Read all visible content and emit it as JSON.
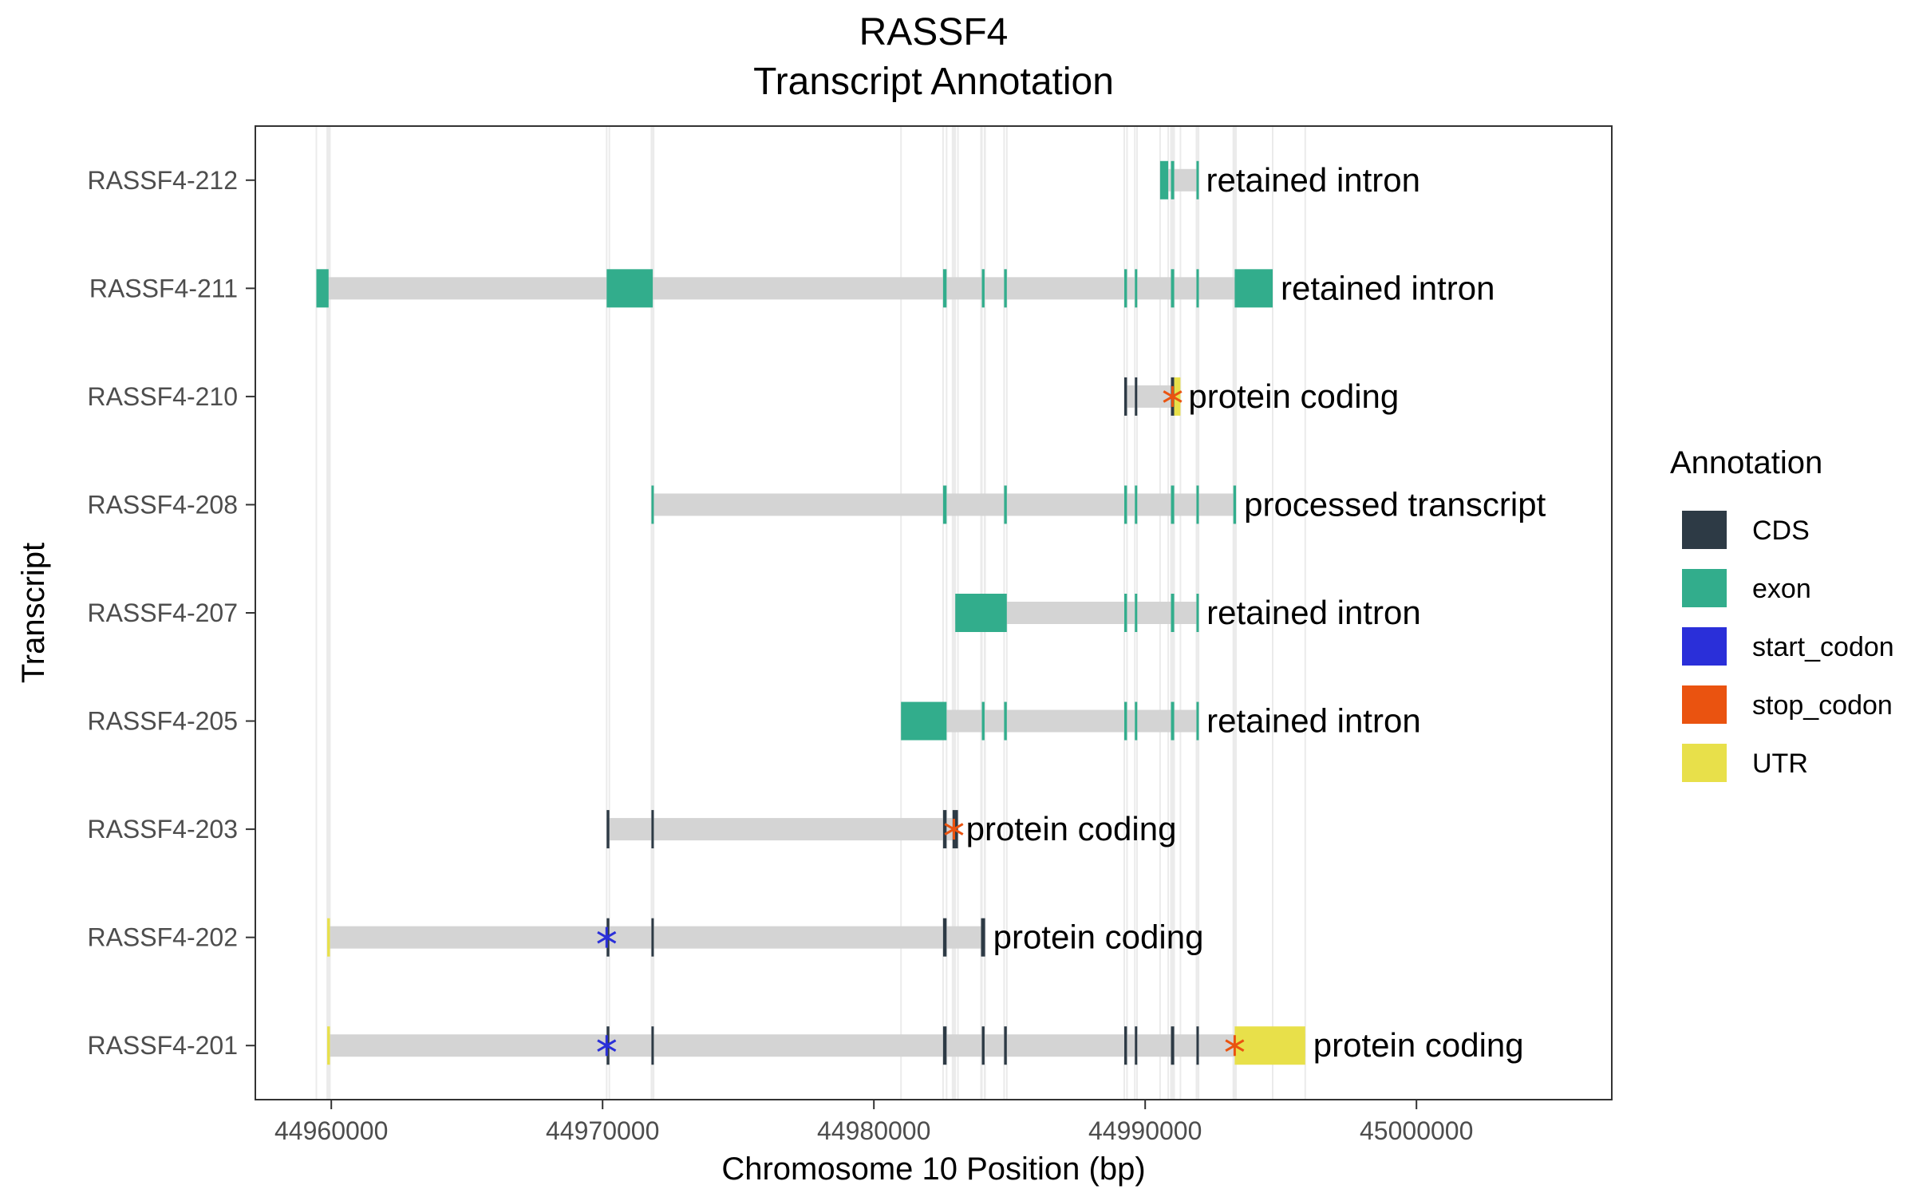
{
  "chart_data": {
    "type": "gene-track",
    "title": "RASSF4",
    "subtitle": "Transcript Annotation",
    "xlabel": "Chromosome 10 Position (bp)",
    "ylabel": "Transcript",
    "xlim": [
      44957200,
      45007200
    ],
    "x_ticks": [
      44960000,
      44970000,
      44980000,
      44990000,
      45000000
    ],
    "x_tick_labels": [
      "44960000",
      "44970000",
      "44980000",
      "44990000",
      "45000000"
    ],
    "grid": true,
    "legend_position": "right",
    "legend": {
      "title": "Annotation",
      "items": [
        {
          "label": "CDS",
          "color": "#2d3a45"
        },
        {
          "label": "exon",
          "color": "#32ad8c"
        },
        {
          "label": "start_codon",
          "color": "#2a2fd9"
        },
        {
          "label": "stop_codon",
          "color": "#ea5310"
        },
        {
          "label": "UTR",
          "color": "#e8e04a"
        }
      ]
    },
    "colors": {
      "intron": "#d4d4d4",
      "CDS": "#2d3a45",
      "exon": "#32ad8c",
      "start_codon": "#2a2fd9",
      "stop_codon": "#ea5310",
      "UTR": "#e8e04a"
    },
    "transcripts": [
      {
        "name": "RASSF4-212",
        "biotype": "retained intron",
        "start": 44990550,
        "end": 44991950,
        "features": [
          {
            "type": "exon",
            "start": 44990550,
            "end": 44990850
          },
          {
            "type": "exon",
            "start": 44990950,
            "end": 44991070
          },
          {
            "type": "exon",
            "start": 44991890,
            "end": 44991950
          }
        ]
      },
      {
        "name": "RASSF4-211",
        "biotype": "retained intron",
        "start": 44959450,
        "end": 44994700,
        "features": [
          {
            "type": "exon",
            "start": 44959450,
            "end": 44959900
          },
          {
            "type": "exon",
            "start": 44970150,
            "end": 44971850
          },
          {
            "type": "exon",
            "start": 44982550,
            "end": 44982680
          },
          {
            "type": "exon",
            "start": 44983980,
            "end": 44984080
          },
          {
            "type": "exon",
            "start": 44984800,
            "end": 44984900
          },
          {
            "type": "exon",
            "start": 44989230,
            "end": 44989330
          },
          {
            "type": "exon",
            "start": 44989620,
            "end": 44989700
          },
          {
            "type": "exon",
            "start": 44990950,
            "end": 44991070
          },
          {
            "type": "exon",
            "start": 44991890,
            "end": 44991970
          },
          {
            "type": "exon",
            "start": 44993300,
            "end": 44994700
          }
        ]
      },
      {
        "name": "RASSF4-210",
        "biotype": "protein coding",
        "start": 44989230,
        "end": 44991300,
        "features": [
          {
            "type": "CDS",
            "start": 44989230,
            "end": 44989330
          },
          {
            "type": "CDS",
            "start": 44989620,
            "end": 44989700
          },
          {
            "type": "CDS",
            "start": 44990950,
            "end": 44991070
          },
          {
            "type": "UTR",
            "start": 44991070,
            "end": 44991300
          },
          {
            "type": "stop_codon",
            "start": 44991010,
            "end": 44991010
          }
        ]
      },
      {
        "name": "RASSF4-208",
        "biotype": "processed transcript",
        "start": 44971800,
        "end": 44993350,
        "features": [
          {
            "type": "exon",
            "start": 44971800,
            "end": 44971880
          },
          {
            "type": "exon",
            "start": 44982550,
            "end": 44982680
          },
          {
            "type": "exon",
            "start": 44984800,
            "end": 44984900
          },
          {
            "type": "exon",
            "start": 44989230,
            "end": 44989330
          },
          {
            "type": "exon",
            "start": 44989620,
            "end": 44989700
          },
          {
            "type": "exon",
            "start": 44990950,
            "end": 44991070
          },
          {
            "type": "exon",
            "start": 44991890,
            "end": 44991970
          },
          {
            "type": "exon",
            "start": 44993250,
            "end": 44993350
          }
        ]
      },
      {
        "name": "RASSF4-207",
        "biotype": "retained intron",
        "start": 44983000,
        "end": 44991970,
        "features": [
          {
            "type": "exon",
            "start": 44983000,
            "end": 44984900
          },
          {
            "type": "exon",
            "start": 44989230,
            "end": 44989330
          },
          {
            "type": "exon",
            "start": 44989620,
            "end": 44989700
          },
          {
            "type": "exon",
            "start": 44990950,
            "end": 44991070
          },
          {
            "type": "exon",
            "start": 44991890,
            "end": 44991970
          }
        ]
      },
      {
        "name": "RASSF4-205",
        "biotype": "retained intron",
        "start": 44981000,
        "end": 44991970,
        "features": [
          {
            "type": "exon",
            "start": 44981000,
            "end": 44982680
          },
          {
            "type": "exon",
            "start": 44983980,
            "end": 44984080
          },
          {
            "type": "exon",
            "start": 44984800,
            "end": 44984900
          },
          {
            "type": "exon",
            "start": 44989230,
            "end": 44989330
          },
          {
            "type": "exon",
            "start": 44989620,
            "end": 44989700
          },
          {
            "type": "exon",
            "start": 44990950,
            "end": 44991070
          },
          {
            "type": "exon",
            "start": 44991890,
            "end": 44991970
          }
        ]
      },
      {
        "name": "RASSF4-203",
        "biotype": "protein coding",
        "start": 44970150,
        "end": 44983100,
        "features": [
          {
            "type": "CDS",
            "start": 44970150,
            "end": 44970250
          },
          {
            "type": "CDS",
            "start": 44971800,
            "end": 44971880
          },
          {
            "type": "CDS",
            "start": 44982550,
            "end": 44982680
          },
          {
            "type": "CDS",
            "start": 44982900,
            "end": 44983100
          },
          {
            "type": "stop_codon",
            "start": 44982950,
            "end": 44982950
          }
        ]
      },
      {
        "name": "RASSF4-202",
        "biotype": "protein coding",
        "start": 44959850,
        "end": 44984100,
        "features": [
          {
            "type": "UTR",
            "start": 44959850,
            "end": 44959950
          },
          {
            "type": "CDS",
            "start": 44970150,
            "end": 44970250
          },
          {
            "type": "CDS",
            "start": 44971800,
            "end": 44971880
          },
          {
            "type": "CDS",
            "start": 44982550,
            "end": 44982680
          },
          {
            "type": "CDS",
            "start": 44983950,
            "end": 44984100
          },
          {
            "type": "start_codon",
            "start": 44970150,
            "end": 44970150
          }
        ]
      },
      {
        "name": "RASSF4-201",
        "biotype": "protein coding",
        "start": 44959850,
        "end": 44995900,
        "features": [
          {
            "type": "UTR",
            "start": 44959850,
            "end": 44959950
          },
          {
            "type": "CDS",
            "start": 44970150,
            "end": 44970250
          },
          {
            "type": "CDS",
            "start": 44971800,
            "end": 44971880
          },
          {
            "type": "CDS",
            "start": 44982550,
            "end": 44982680
          },
          {
            "type": "CDS",
            "start": 44983980,
            "end": 44984080
          },
          {
            "type": "CDS",
            "start": 44984800,
            "end": 44984900
          },
          {
            "type": "CDS",
            "start": 44989230,
            "end": 44989330
          },
          {
            "type": "CDS",
            "start": 44989620,
            "end": 44989700
          },
          {
            "type": "CDS",
            "start": 44990950,
            "end": 44991070
          },
          {
            "type": "CDS",
            "start": 44991890,
            "end": 44991970
          },
          {
            "type": "UTR",
            "start": 44993300,
            "end": 44995900
          },
          {
            "type": "start_codon",
            "start": 44970150,
            "end": 44970150
          },
          {
            "type": "stop_codon",
            "start": 44993300,
            "end": 44993300
          }
        ]
      }
    ]
  }
}
